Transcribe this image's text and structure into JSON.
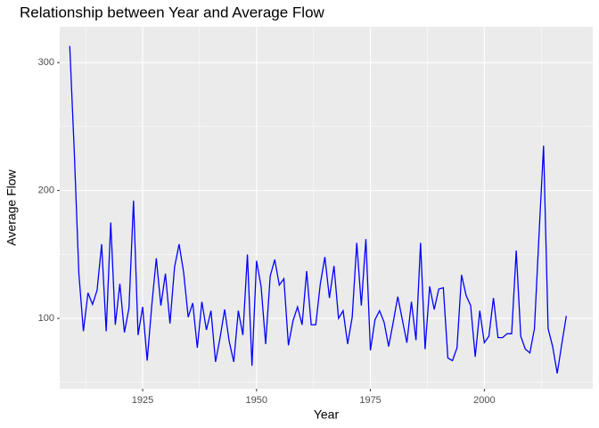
{
  "chart_data": {
    "type": "line",
    "title": "Relationship between Year and Average Flow",
    "x_label": "Year",
    "y_label": "Average Flow",
    "x": [
      1909,
      1910,
      1911,
      1912,
      1913,
      1914,
      1915,
      1916,
      1917,
      1918,
      1919,
      1920,
      1921,
      1922,
      1923,
      1924,
      1925,
      1926,
      1927,
      1928,
      1929,
      1930,
      1931,
      1932,
      1933,
      1934,
      1935,
      1936,
      1937,
      1938,
      1939,
      1940,
      1941,
      1942,
      1943,
      1944,
      1945,
      1946,
      1947,
      1948,
      1949,
      1950,
      1951,
      1952,
      1953,
      1954,
      1955,
      1956,
      1957,
      1958,
      1959,
      1960,
      1961,
      1962,
      1963,
      1964,
      1965,
      1966,
      1967,
      1968,
      1969,
      1970,
      1971,
      1972,
      1973,
      1974,
      1975,
      1976,
      1977,
      1978,
      1979,
      1980,
      1981,
      1982,
      1983,
      1984,
      1985,
      1986,
      1987,
      1988,
      1989,
      1990,
      1991,
      1992,
      1993,
      1994,
      1995,
      1996,
      1997,
      1998,
      1999,
      2000,
      2001,
      2002,
      2003,
      2004,
      2005,
      2006,
      2007,
      2008,
      2009,
      2010,
      2011,
      2012,
      2013,
      2014,
      2015,
      2016,
      2017,
      2018
    ],
    "series": [
      {
        "color": "#0000ff",
        "values": [
          313,
          230,
          135,
          90,
          120,
          111,
          122,
          158,
          90,
          175,
          95,
          127,
          89,
          108,
          192,
          87,
          109,
          67,
          110,
          147,
          110,
          135,
          96,
          140,
          158,
          136,
          101,
          112,
          77,
          113,
          91,
          106,
          66,
          85,
          107,
          82,
          66,
          106,
          87,
          150,
          63,
          145,
          125,
          80,
          133,
          146,
          126,
          131,
          79,
          98,
          109,
          95,
          137,
          95,
          95,
          127,
          148,
          116,
          141,
          100,
          106,
          80,
          101,
          159,
          110,
          162,
          75,
          99,
          106,
          97,
          78,
          97,
          117,
          99,
          81,
          113,
          83,
          159,
          76,
          125,
          107,
          123,
          124,
          69,
          67,
          77,
          134,
          118,
          110,
          70,
          106,
          81,
          86,
          116,
          85,
          85,
          88,
          88,
          153,
          86,
          76,
          73,
          92,
          165,
          235,
          92,
          78,
          57,
          80,
          102
        ]
      }
    ],
    "xlim": [
      1906.8,
      2023.8
    ],
    "xticks": [
      1925,
      1950,
      1975,
      2000
    ],
    "ylim": [
      45,
      328
    ],
    "yticks": [
      100,
      200,
      300
    ],
    "grid": true
  }
}
